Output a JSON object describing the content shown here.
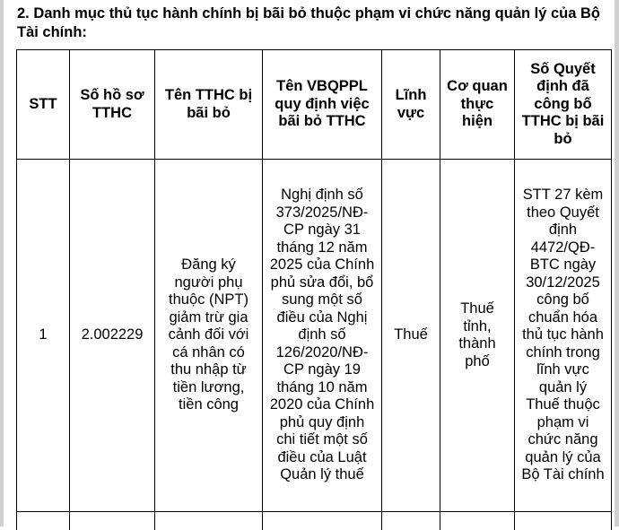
{
  "title": "2. Danh mục thủ tục hành chính bị bãi bỏ thuộc phạm vi chức năng quản lý của Bộ Tài chính:",
  "table": {
    "headers": [
      "STT",
      "Số hồ sơ TTHC",
      "Tên TTHC bị bãi bỏ",
      "Tên VBQPPL quy định việc bãi bỏ TTHC",
      "Lĩnh vực",
      "Cơ quan thực hiện",
      "Số Quyết định đã công bố TTHC bị bãi bỏ"
    ],
    "rows": [
      [
        "1",
        "2.002229",
        "Đăng ký người phụ thuộc (NPT) giảm trừ gia cảnh đối với cá nhân có thu nhập từ tiền lương, tiền công",
        "Nghị định số 373/2025/NĐ-CP ngày 31 tháng 12 năm 2025 của Chính phủ sửa đổi, bổ sung một số điều của Nghị định số 126/2020/NĐ-CP ngày 19 tháng 10 năm 2020 của Chính phủ quy định chi tiết một số điều của Luật Quản lý thuế",
        "Thuế",
        "Thuế tỉnh, thành phố",
        "STT 27 kèm theo Quyết định 4472/QĐ-BTC ngày 30/12/2025 công bố chuẩn hóa thủ tục hành chính trong lĩnh vực quản lý Thuế thuộc phạm vi chức năng quản lý của Bộ Tài chính"
      ]
    ]
  }
}
